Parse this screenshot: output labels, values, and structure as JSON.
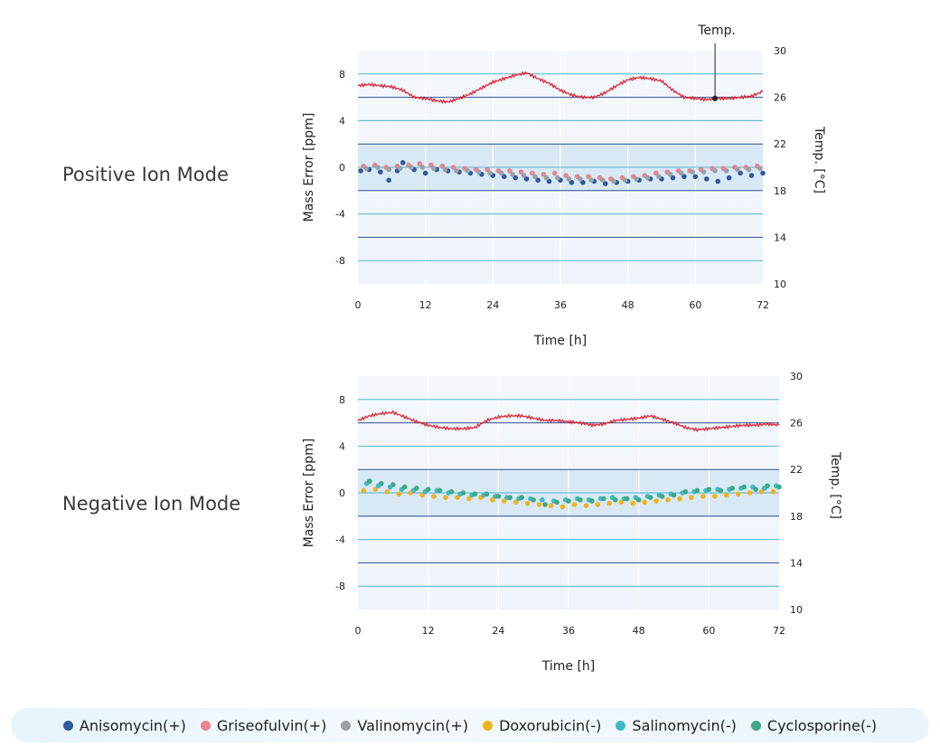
{
  "colors": {
    "anisomycin": "#2f5a9e",
    "griseofulvin": "#e8848c",
    "valinomycin": "#9aa0a6",
    "doxorubicin": "#f2b21c",
    "salinomycin": "#3fb8c4",
    "cyclosporine": "#3daa7f",
    "temperature": "#e0202e",
    "band": "#cfe3f3",
    "grid_dark": "#2e4e8e",
    "grid_teal": "#4fb5c9"
  },
  "legend": [
    {
      "label": "Anisomycin(+)",
      "color_key": "anisomycin"
    },
    {
      "label": "Griseofulvin(+)",
      "color_key": "griseofulvin"
    },
    {
      "label": "Valinomycin(+)",
      "color_key": "valinomycin"
    },
    {
      "label": "Doxorubicin(-)",
      "color_key": "doxorubicin"
    },
    {
      "label": "Salinomycin(-)",
      "color_key": "salinomycin"
    },
    {
      "label": "Cyclosporine(-)",
      "color_key": "cyclosporine"
    }
  ],
  "chart_data": [
    {
      "type": "scatter",
      "mode_label": "Positive Ion Mode",
      "xlabel": "Time [h]",
      "ylabel": "Mass Error [ppm]",
      "y2label": "Temp. [°C]",
      "annotation": "Temp.",
      "xlim": [
        0,
        72
      ],
      "xticks": [
        0,
        12,
        24,
        36,
        48,
        60,
        72
      ],
      "ylim": [
        -10,
        10
      ],
      "yticks": [
        8,
        4,
        0,
        -4,
        -8
      ],
      "y2lim": [
        10,
        30
      ],
      "y2ticks": [
        30,
        26,
        22,
        18,
        14,
        10
      ],
      "series": [
        {
          "name": "Anisomycin(+)",
          "color_key": "anisomycin",
          "x": [
            0.5,
            2,
            4,
            5.5,
            7,
            8,
            10,
            12,
            14,
            16,
            18,
            20,
            22,
            24,
            26,
            28,
            30,
            32,
            34,
            36,
            38,
            40,
            42,
            44,
            46,
            48,
            50,
            52,
            54,
            56,
            58,
            60,
            62,
            64,
            66,
            68,
            70,
            72
          ],
          "y": [
            -0.3,
            -0.2,
            -0.4,
            -1.1,
            -0.3,
            0.4,
            -0.2,
            -0.5,
            -0.2,
            -0.3,
            -0.4,
            -0.5,
            -0.6,
            -0.7,
            -0.8,
            -0.9,
            -1.0,
            -1.1,
            -1.2,
            -1.1,
            -1.3,
            -1.3,
            -1.2,
            -1.4,
            -1.3,
            -1.2,
            -1.1,
            -1.0,
            -1.0,
            -0.9,
            -0.8,
            -0.8,
            -1.0,
            -1.2,
            -0.9,
            -0.5,
            -0.7,
            -0.5
          ]
        },
        {
          "name": "Griseofulvin(+)",
          "color_key": "griseofulvin",
          "x": [
            1,
            3,
            5,
            7,
            9,
            11,
            13,
            15,
            17,
            19,
            21,
            23,
            25,
            27,
            29,
            31,
            33,
            35,
            37,
            39,
            41,
            43,
            45,
            47,
            49,
            51,
            53,
            55,
            57,
            59,
            61,
            63,
            65,
            67,
            69,
            71
          ],
          "y": [
            0.1,
            0.2,
            0.0,
            0.1,
            0.2,
            0.3,
            0.2,
            0.1,
            0.0,
            -0.1,
            -0.2,
            -0.2,
            -0.3,
            -0.3,
            -0.4,
            -0.5,
            -0.6,
            -0.5,
            -0.7,
            -0.8,
            -0.8,
            -0.9,
            -1.0,
            -0.9,
            -0.8,
            -0.7,
            -0.5,
            -0.4,
            -0.3,
            -0.3,
            -0.2,
            -0.1,
            -0.1,
            0.0,
            0.0,
            0.1
          ]
        },
        {
          "name": "Valinomycin(+)",
          "color_key": "valinomycin",
          "x": [
            1.5,
            3.5,
            5.5,
            7.5,
            9.5,
            11.5,
            13.5,
            15.5,
            17.5,
            19.5,
            21.5,
            23.5,
            25.5,
            27.5,
            29.5,
            31.5,
            33.5,
            35.5,
            37.5,
            39.5,
            41.5,
            43.5,
            45.5,
            47.5,
            49.5,
            51.5,
            53.5,
            55.5,
            57.5,
            59.5,
            61.5,
            63.5,
            65.5,
            67.5,
            69.5,
            71.5
          ],
          "y": [
            -0.1,
            0.0,
            -0.2,
            -0.1,
            0.0,
            0.0,
            -0.1,
            -0.2,
            -0.3,
            -0.3,
            -0.4,
            -0.5,
            -0.5,
            -0.6,
            -0.7,
            -0.8,
            -0.9,
            -0.9,
            -1.0,
            -1.0,
            -1.1,
            -1.1,
            -1.2,
            -1.1,
            -1.0,
            -0.9,
            -0.8,
            -0.6,
            -0.5,
            -0.4,
            -0.4,
            -0.3,
            -0.3,
            -0.2,
            -0.2,
            -0.1
          ]
        }
      ],
      "temperature": {
        "name": "Temp.",
        "color_key": "temperature",
        "x": [
          0,
          2,
          4,
          6,
          8,
          10,
          12,
          14,
          16,
          18,
          20,
          22,
          24,
          26,
          28,
          30,
          32,
          34,
          36,
          38,
          40,
          42,
          44,
          46,
          48,
          50,
          52,
          54,
          56,
          58,
          60,
          62,
          64,
          66,
          68,
          70,
          72
        ],
        "y": [
          27.0,
          27.1,
          27.0,
          26.9,
          26.6,
          26.0,
          25.9,
          25.7,
          25.6,
          25.9,
          26.3,
          26.8,
          27.3,
          27.6,
          27.9,
          28.1,
          27.6,
          27.2,
          26.6,
          26.2,
          26.0,
          26.0,
          26.4,
          27.0,
          27.5,
          27.7,
          27.6,
          27.4,
          26.6,
          26.0,
          25.9,
          25.8,
          25.9,
          25.9,
          26.0,
          26.1,
          26.5
        ]
      }
    },
    {
      "type": "scatter",
      "mode_label": "Negative Ion Mode",
      "xlabel": "Time [h]",
      "ylabel": "Mass Error [ppm]",
      "y2label": "Temp. [°C]",
      "xlim": [
        0,
        72
      ],
      "xticks": [
        0,
        12,
        24,
        36,
        48,
        60,
        72
      ],
      "ylim": [
        -10,
        10
      ],
      "yticks": [
        8,
        4,
        0,
        -4,
        -8
      ],
      "y2lim": [
        10,
        30
      ],
      "y2ticks": [
        30,
        26,
        22,
        18,
        14,
        10
      ],
      "series": [
        {
          "name": "Doxorubicin(-)",
          "color_key": "doxorubicin",
          "x": [
            1,
            3,
            5,
            7,
            9,
            11,
            13,
            15,
            17,
            19,
            21,
            23,
            25,
            27,
            29,
            31,
            33,
            35,
            37,
            39,
            41,
            43,
            45,
            47,
            49,
            51,
            53,
            55,
            57,
            59,
            61,
            63,
            65,
            67,
            69,
            71
          ],
          "y": [
            0.2,
            0.3,
            0.1,
            -0.1,
            0.0,
            -0.2,
            -0.3,
            -0.4,
            -0.4,
            -0.5,
            -0.4,
            -0.6,
            -0.7,
            -0.8,
            -0.9,
            -1.0,
            -1.1,
            -1.2,
            -1.0,
            -1.1,
            -1.0,
            -0.9,
            -0.8,
            -0.9,
            -0.8,
            -0.7,
            -0.6,
            -0.5,
            -0.4,
            -0.3,
            -0.3,
            -0.2,
            -0.1,
            0.0,
            0.1,
            0.1
          ]
        },
        {
          "name": "Salinomycin(-)",
          "color_key": "salinomycin",
          "x": [
            1.5,
            3.5,
            5.5,
            7.5,
            9.5,
            11.5,
            13.5,
            15.5,
            17.5,
            19.5,
            21.5,
            23.5,
            25.5,
            27.5,
            29.5,
            31.5,
            33.5,
            35.5,
            37.5,
            39.5,
            41.5,
            43.5,
            45.5,
            47.5,
            49.5,
            51.5,
            53.5,
            55.5,
            57.5,
            59.5,
            61.5,
            63.5,
            65.5,
            67.5,
            69.5,
            71.5
          ],
          "y": [
            0.8,
            0.6,
            0.5,
            0.3,
            0.2,
            0.1,
            0.2,
            0.0,
            -0.1,
            -0.2,
            -0.2,
            -0.3,
            -0.4,
            -0.5,
            -0.5,
            -0.6,
            -0.7,
            -0.6,
            -0.5,
            -0.6,
            -0.5,
            -0.4,
            -0.5,
            -0.4,
            -0.3,
            -0.2,
            -0.1,
            0.0,
            0.1,
            0.2,
            0.3,
            0.3,
            0.4,
            0.5,
            0.4,
            0.6
          ]
        },
        {
          "name": "Cyclosporine(-)",
          "color_key": "cyclosporine",
          "x": [
            2,
            4,
            6,
            8,
            10,
            12,
            14,
            16,
            18,
            20,
            22,
            24,
            26,
            28,
            30,
            32,
            34,
            36,
            38,
            40,
            42,
            44,
            46,
            48,
            50,
            52,
            54,
            56,
            58,
            60,
            62,
            64,
            66,
            68,
            70,
            72
          ],
          "y": [
            1.0,
            0.8,
            0.7,
            0.5,
            0.4,
            0.3,
            0.2,
            0.1,
            0.0,
            -0.1,
            -0.1,
            -0.3,
            -0.4,
            -0.4,
            -0.6,
            -1.0,
            -0.8,
            -0.7,
            -0.6,
            -0.7,
            -0.5,
            -0.6,
            -0.5,
            -0.6,
            -0.4,
            -0.3,
            -0.2,
            0.1,
            0.2,
            0.3,
            0.2,
            0.4,
            0.5,
            0.3,
            0.6,
            0.5
          ]
        }
      ],
      "temperature": {
        "name": "Temp.",
        "color_key": "temperature",
        "x": [
          0,
          2,
          4,
          6,
          8,
          10,
          12,
          14,
          16,
          18,
          20,
          22,
          24,
          26,
          28,
          30,
          32,
          34,
          36,
          38,
          40,
          42,
          44,
          46,
          48,
          50,
          52,
          54,
          56,
          58,
          60,
          62,
          64,
          66,
          68,
          70,
          72
        ],
        "y": [
          26.2,
          26.6,
          26.8,
          26.9,
          26.5,
          26.1,
          25.8,
          25.6,
          25.5,
          25.5,
          25.6,
          26.2,
          26.5,
          26.6,
          26.6,
          26.4,
          26.2,
          26.2,
          26.1,
          26.0,
          25.8,
          25.9,
          26.2,
          26.3,
          26.4,
          26.6,
          26.3,
          26.0,
          25.6,
          25.4,
          25.5,
          25.6,
          25.7,
          25.8,
          25.8,
          25.9,
          25.8
        ]
      }
    }
  ]
}
